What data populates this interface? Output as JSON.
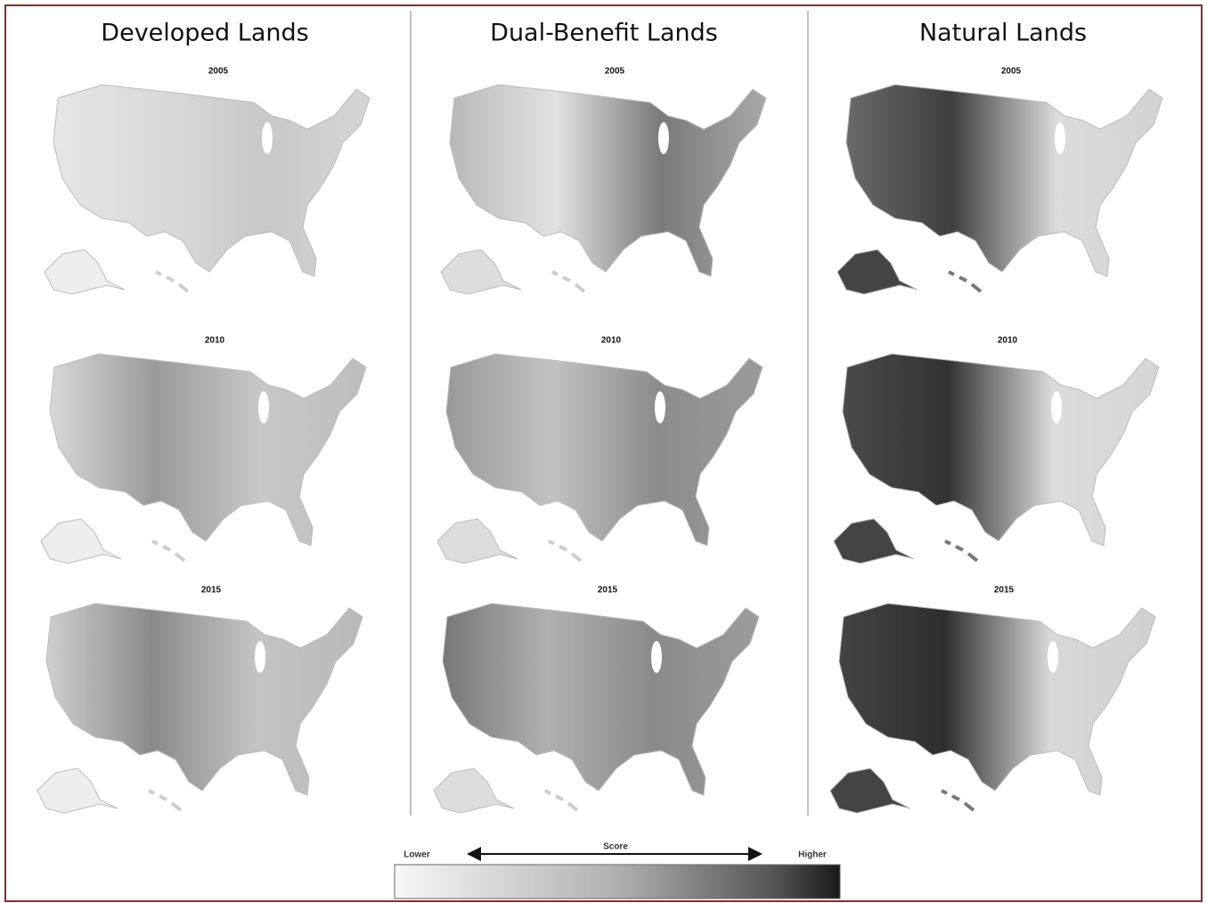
{
  "columns": [
    {
      "title": "Developed Lands",
      "maps": [
        {
          "year": "2005"
        },
        {
          "year": "2010"
        },
        {
          "year": "2015"
        }
      ]
    },
    {
      "title": "Dual-Benefit Lands",
      "maps": [
        {
          "year": "2005"
        },
        {
          "year": "2010"
        },
        {
          "year": "2015"
        }
      ]
    },
    {
      "title": "Natural Lands",
      "maps": [
        {
          "year": "2005"
        },
        {
          "year": "2010"
        },
        {
          "year": "2015"
        }
      ]
    }
  ],
  "legend": {
    "low": "Lower",
    "title": "Score",
    "high": "Higher"
  }
}
